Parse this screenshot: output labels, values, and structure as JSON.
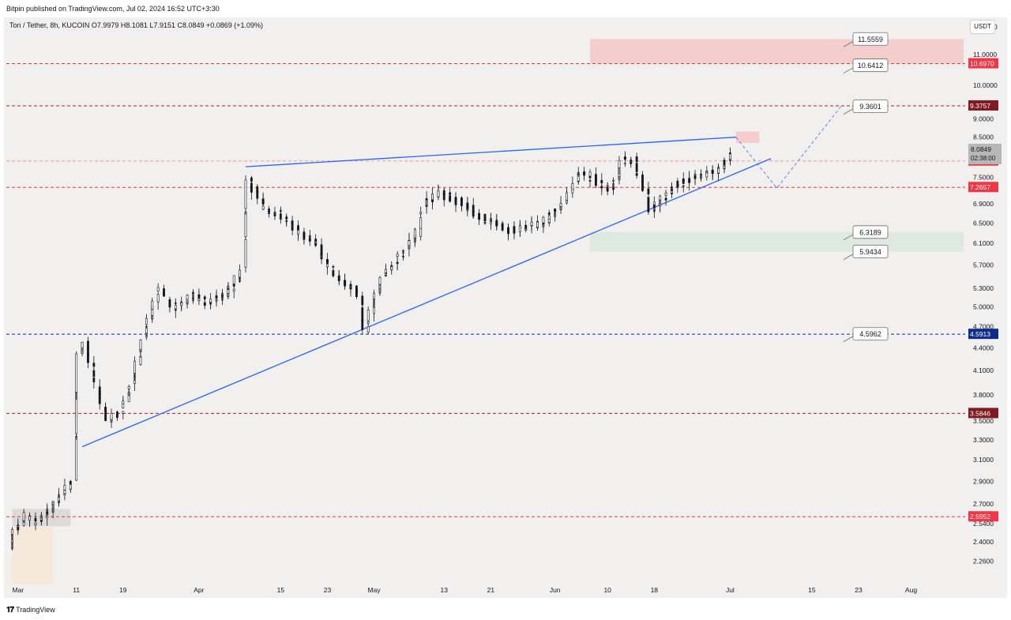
{
  "header": {
    "published_by": "Bitpin published on TradingView.com, Jul 02, 2024 16:52 UTC+3:30",
    "symbol_info": "Ton / Tether, 8h, KUCOIN  O7.9979  H8.1081  L7.9151  C8.0849  +0.0869 (+1.09%)",
    "currency": "USDT"
  },
  "footer": {
    "logo_mark": "𝟏𝟕",
    "logo_text": "TradingView"
  },
  "colors": {
    "background": "#f2f0ee",
    "candle": "#131722",
    "trendline": "#2962ff",
    "red_level": "#e53935",
    "dark_red_level": "#7f0000",
    "blue_level": "#0d2d8a",
    "resistance_zone": "#f4c7c7",
    "support_zone": "#dbe8dc",
    "grid_text": "#131722"
  },
  "chart_data": {
    "type": "candlestick",
    "title": "Ton / Tether, 8h, KUCOIN",
    "y_scale": "log",
    "ylim": [
      2.1,
      12.3
    ],
    "x_tick_labels": [
      "Mar",
      "11",
      "19",
      "Apr",
      "15",
      "23",
      "May",
      "13",
      "21",
      "Jun",
      "10",
      "18",
      "Jul",
      "15",
      "23",
      "Aug"
    ],
    "x_tick_dates": [
      "2024-03-01",
      "2024-03-11",
      "2024-03-19",
      "2024-04-01",
      "2024-04-15",
      "2024-04-23",
      "2024-05-01",
      "2024-05-13",
      "2024-05-21",
      "2024-06-01",
      "2024-06-10",
      "2024-06-18",
      "2024-07-01",
      "2024-07-15",
      "2024-07-23",
      "2024-08-01"
    ],
    "y_tick_labels": [
      "12.0000",
      "11.0000",
      "10.0000",
      "9.0000",
      "8.5000",
      "7.5000",
      "6.9000",
      "6.5000",
      "6.1000",
      "5.7000",
      "5.3000",
      "5.0000",
      "4.7000",
      "4.4000",
      "4.1000",
      "3.8000",
      "3.5000",
      "3.3000",
      "3.1000",
      "2.9000",
      "2.7000",
      "2.5400",
      "2.4000",
      "2.2600"
    ],
    "y_tick_values": [
      12.0,
      11.0,
      10.0,
      9.0,
      8.5,
      7.5,
      6.9,
      6.5,
      6.1,
      5.7,
      5.3,
      5.0,
      4.7,
      4.4,
      4.1,
      3.8,
      3.5,
      3.3,
      3.1,
      2.9,
      2.7,
      2.54,
      2.4,
      2.26
    ],
    "price_series": {
      "dates": [
        "2024-02-29",
        "2024-03-01",
        "2024-03-03",
        "2024-03-05",
        "2024-03-07",
        "2024-03-09",
        "2024-03-11",
        "2024-03-12",
        "2024-03-13",
        "2024-03-15",
        "2024-03-17",
        "2024-03-19",
        "2024-03-21",
        "2024-03-22",
        "2024-03-24",
        "2024-03-26",
        "2024-03-28",
        "2024-03-30",
        "2024-04-01",
        "2024-04-03",
        "2024-04-05",
        "2024-04-07",
        "2024-04-09",
        "2024-04-10",
        "2024-04-11",
        "2024-04-13",
        "2024-04-15",
        "2024-04-17",
        "2024-04-19",
        "2024-04-21",
        "2024-04-23",
        "2024-04-25",
        "2024-04-27",
        "2024-04-29",
        "2024-04-30",
        "2024-05-01",
        "2024-05-03",
        "2024-05-05",
        "2024-05-07",
        "2024-05-09",
        "2024-05-10",
        "2024-05-11",
        "2024-05-13",
        "2024-05-15",
        "2024-05-17",
        "2024-05-19",
        "2024-05-21",
        "2024-05-23",
        "2024-05-25",
        "2024-05-27",
        "2024-05-29",
        "2024-05-31",
        "2024-06-02",
        "2024-06-04",
        "2024-06-05",
        "2024-06-06",
        "2024-06-08",
        "2024-06-10",
        "2024-06-11",
        "2024-06-12",
        "2024-06-13",
        "2024-06-15",
        "2024-06-17",
        "2024-06-18",
        "2024-06-20",
        "2024-06-22",
        "2024-06-24",
        "2024-06-26",
        "2024-06-28",
        "2024-06-30",
        "2024-07-01",
        "2024-07-02"
      ],
      "close": [
        2.35,
        2.5,
        2.6,
        2.55,
        2.65,
        2.78,
        2.9,
        4.3,
        4.5,
        3.9,
        3.5,
        3.6,
        3.9,
        4.2,
        4.8,
        5.3,
        5.0,
        5.1,
        5.2,
        5.05,
        5.15,
        5.3,
        5.6,
        7.4,
        7.2,
        6.8,
        6.7,
        6.5,
        6.3,
        6.2,
        5.8,
        5.5,
        5.35,
        5.2,
        4.65,
        4.9,
        5.5,
        5.7,
        6.0,
        6.3,
        6.8,
        7.0,
        7.15,
        7.0,
        6.9,
        6.7,
        6.55,
        6.45,
        6.35,
        6.4,
        6.45,
        6.55,
        6.8,
        7.1,
        7.4,
        7.6,
        7.5,
        7.3,
        7.2,
        7.45,
        7.9,
        7.9,
        7.2,
        6.8,
        7.0,
        7.3,
        7.4,
        7.5,
        7.6,
        7.7,
        7.9,
        8.08
      ]
    },
    "last_price": "8.0849",
    "countdown": "02:38:00",
    "horizontal_levels": [
      {
        "value": 10.697,
        "label": "10.6970",
        "style": "dashed",
        "color": "red"
      },
      {
        "value": 9.3757,
        "label": "9.3757",
        "style": "dashed",
        "color": "dark-red"
      },
      {
        "value": 7.8924,
        "label": "7.8924",
        "style": "dashed",
        "color": "red-light"
      },
      {
        "value": 7.2657,
        "label": "7.2657",
        "style": "dashed",
        "color": "red"
      },
      {
        "value": 4.5913,
        "label": "4.5913",
        "style": "dashed",
        "color": "blue"
      },
      {
        "value": 3.5846,
        "label": "3.5846",
        "style": "dashed",
        "color": "dark-red"
      },
      {
        "value": 2.5952,
        "label": "2.5952",
        "style": "dashed",
        "color": "red"
      }
    ],
    "callouts": [
      "11.5559",
      "10.6412",
      "9.3601",
      "6.3189",
      "5.9434",
      "4.5962"
    ],
    "zones": [
      {
        "type": "resistance",
        "from_date": "2024-06-07",
        "to_date": "2024-08-10",
        "low": 10.697,
        "high": 11.55
      },
      {
        "type": "support",
        "from_date": "2024-06-07",
        "to_date": "2024-08-10",
        "low": 5.9434,
        "high": 6.3189
      },
      {
        "type": "target",
        "from_date": "2024-07-02",
        "to_date": "2024-07-06",
        "low": 8.35,
        "high": 8.65
      },
      {
        "type": "base-gray",
        "from_date": "2024-02-29",
        "to_date": "2024-03-10",
        "low": 2.52,
        "high": 2.66
      },
      {
        "type": "base-orange",
        "from_date": "2024-02-29",
        "to_date": "2024-03-07",
        "low": 2.1,
        "high": 2.52
      }
    ],
    "trendlines": [
      {
        "name": "upper",
        "from": [
          "2024-04-09",
          7.75
        ],
        "to": [
          "2024-07-02",
          8.5
        ]
      },
      {
        "name": "lower",
        "from": [
          "2024-03-12",
          3.23
        ],
        "to": [
          "2024-07-08",
          7.95
        ]
      }
    ],
    "projection": [
      [
        "2024-07-02",
        8.5
      ],
      [
        "2024-07-09",
        7.25
      ],
      [
        "2024-07-20",
        9.36
      ]
    ]
  }
}
